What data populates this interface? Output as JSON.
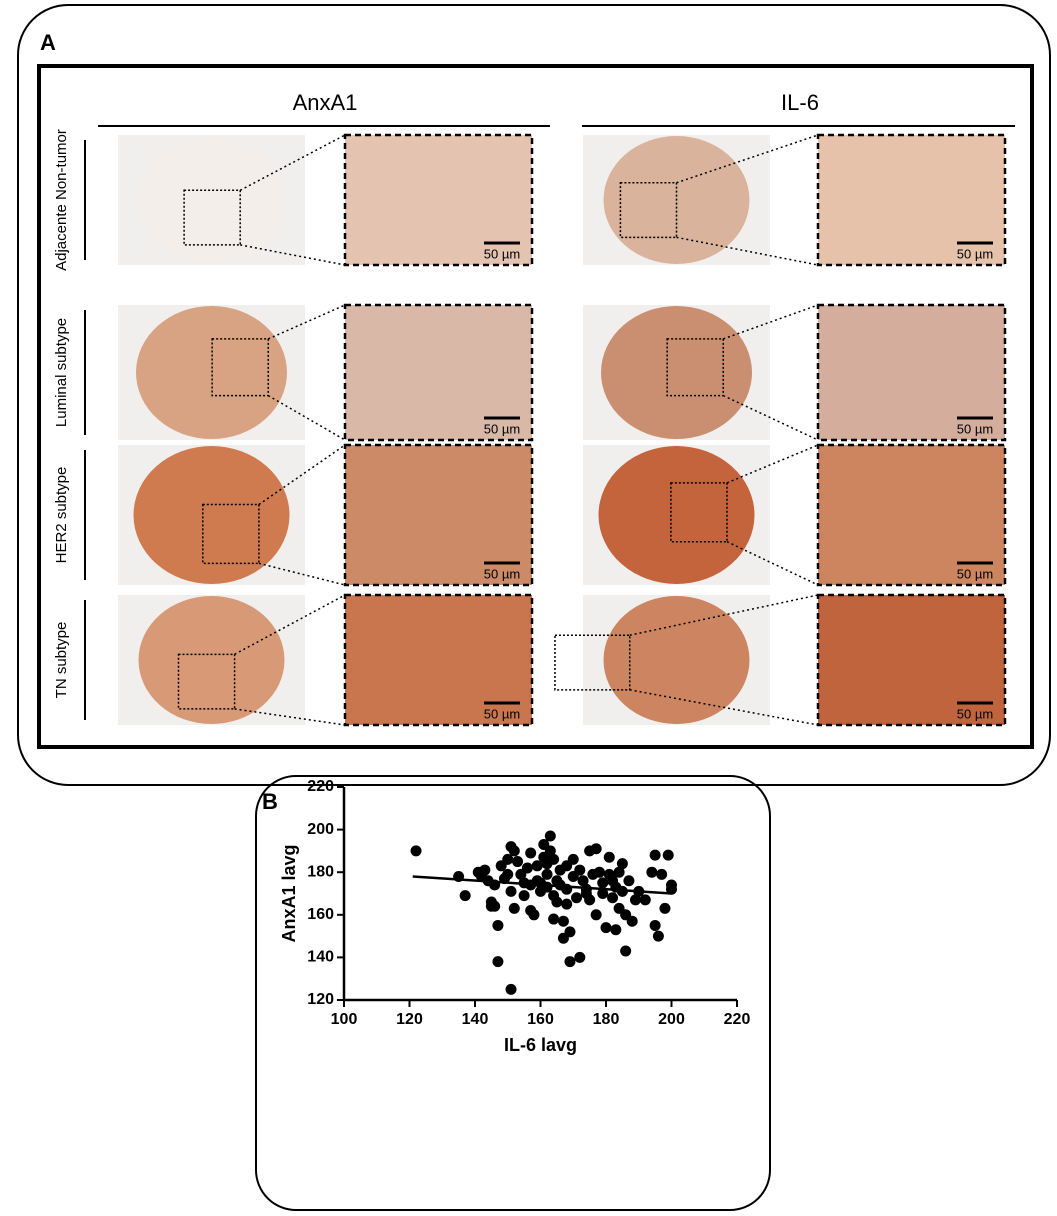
{
  "panel_a": {
    "label": "A",
    "columns": [
      "AnxA1",
      "IL-6"
    ],
    "rows": [
      "Adjacente Non-tumor",
      "Luminal subtype",
      "HER2 subtype",
      "TN subtype"
    ],
    "scale_bar": "50 µm"
  },
  "chart_data": {
    "type": "scatter",
    "label": "B",
    "x_label": "IL-6 lavg",
    "y_label": "AnxA1 lavg",
    "color": "#000000",
    "x": [
      122,
      135,
      137,
      141,
      142,
      143,
      144,
      145,
      145,
      146,
      147,
      147,
      148,
      149,
      150,
      150,
      151,
      151,
      152,
      152,
      153,
      154,
      155,
      155,
      156,
      157,
      157,
      158,
      159,
      159,
      160,
      161,
      161,
      162,
      162,
      162,
      163,
      163,
      164,
      164,
      164,
      165,
      165,
      166,
      166,
      167,
      167,
      168,
      168,
      169,
      169,
      170,
      170,
      171,
      172,
      172,
      173,
      174,
      175,
      175,
      176,
      177,
      177,
      178,
      179,
      179,
      180,
      181,
      181,
      182,
      182,
      183,
      184,
      184,
      185,
      185,
      186,
      186,
      187,
      188,
      189,
      190,
      192,
      194,
      195,
      195,
      196,
      197,
      198,
      199,
      200,
      200,
      151,
      146,
      160,
      168,
      174,
      183,
      157
    ],
    "values": [
      190,
      178,
      169,
      180,
      178,
      181,
      176,
      166,
      164,
      174,
      155,
      138,
      183,
      177,
      186,
      179,
      192,
      171,
      190,
      163,
      185,
      179,
      175,
      169,
      182,
      189,
      174,
      160,
      183,
      176,
      171,
      193,
      187,
      184,
      179,
      173,
      197,
      190,
      186,
      169,
      158,
      176,
      166,
      181,
      174,
      157,
      149,
      183,
      172,
      138,
      152,
      186,
      178,
      168,
      181,
      140,
      176,
      172,
      190,
      167,
      179,
      191,
      160,
      180,
      175,
      170,
      154,
      187,
      179,
      176,
      168,
      173,
      163,
      180,
      184,
      171,
      160,
      143,
      176,
      157,
      167,
      171,
      167,
      180,
      188,
      155,
      150,
      179,
      163,
      188,
      172,
      174,
      125,
      164,
      175,
      165,
      170,
      153,
      162
    ],
    "fit_line": {
      "x": [
        121,
        200
      ],
      "values": [
        178,
        170
      ]
    },
    "xlim": [
      100,
      220
    ],
    "xticks": [
      100,
      120,
      140,
      160,
      180,
      200,
      220
    ],
    "ylim": [
      120,
      220
    ],
    "yticks": [
      120,
      140,
      160,
      180,
      200,
      220
    ]
  }
}
